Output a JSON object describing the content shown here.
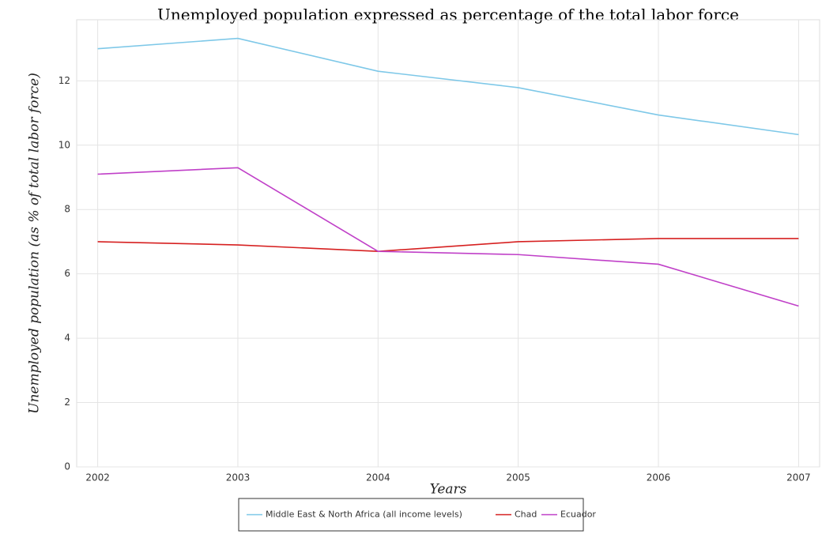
{
  "chart_data": {
    "type": "line",
    "title": "Unemployed population expressed as percentage of the total labor force",
    "x_label": "Years",
    "y_label": "Unemployed population (as % of total labor force)",
    "x": [
      2002,
      2003,
      2004,
      2005,
      2006,
      2007
    ],
    "xlim": [
      2001.85,
      2007.15
    ],
    "xticks": [
      2002,
      2003,
      2004,
      2005,
      2006,
      2007
    ],
    "ylim": [
      0,
      13.9
    ],
    "yticks": [
      0,
      2,
      4,
      6,
      8,
      10,
      12
    ],
    "grid": true,
    "legend": "bottom",
    "series": [
      {
        "name": "Middle East & North Africa (all income levels)",
        "color": "#7ec8e8",
        "values": [
          13.0,
          13.32,
          12.3,
          11.79,
          10.94,
          10.33
        ]
      },
      {
        "name": "Chad",
        "color": "#d62020",
        "values": [
          7.0,
          6.9,
          6.7,
          7.0,
          7.1,
          7.1
        ]
      },
      {
        "name": "Ecuador",
        "color": "#c040c8",
        "values": [
          9.1,
          9.3,
          6.7,
          6.6,
          6.3,
          5.0
        ]
      }
    ]
  }
}
